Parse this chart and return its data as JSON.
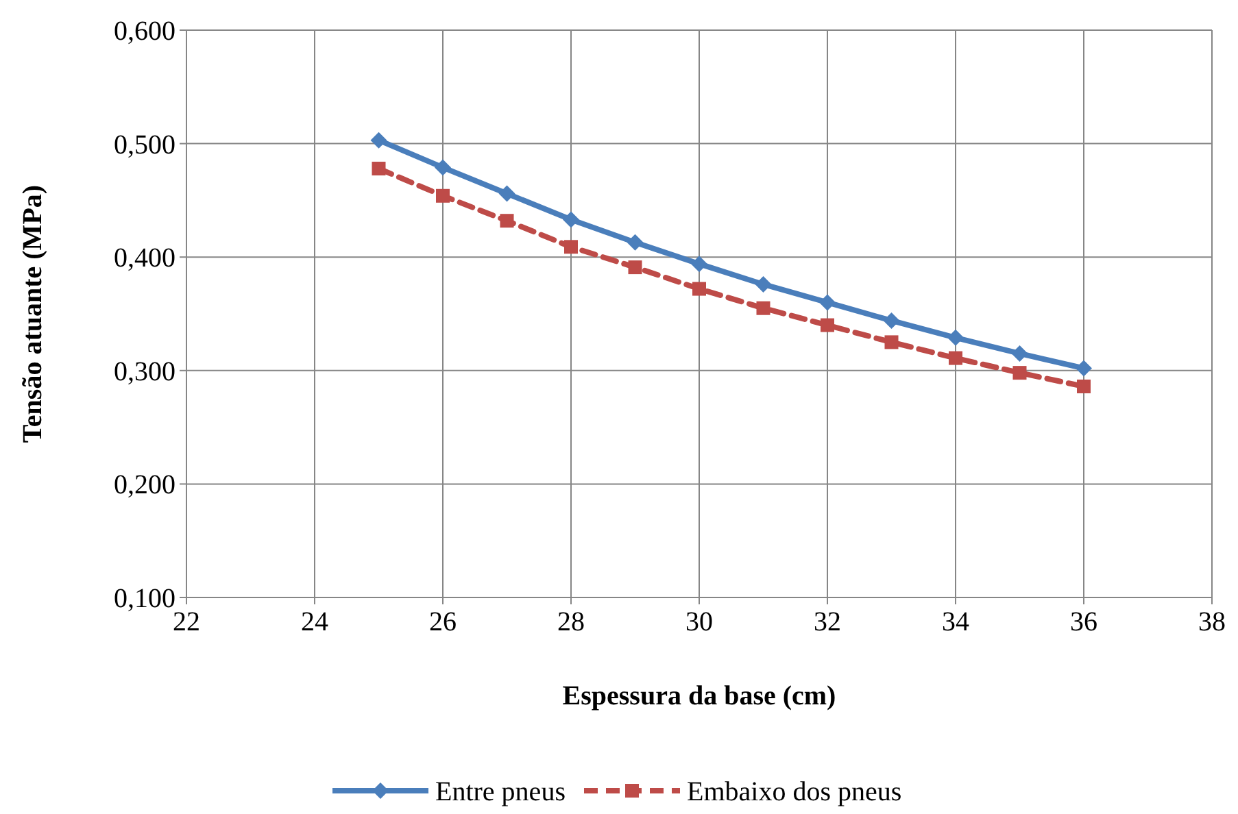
{
  "chart_data": {
    "type": "line",
    "xlabel": "Espessura da base (cm)",
    "ylabel": "Tensão atuante (MPa)",
    "x": [
      25,
      26,
      27,
      28,
      29,
      30,
      31,
      32,
      33,
      34,
      35,
      36
    ],
    "xlim": [
      22,
      38
    ],
    "xticks": [
      22,
      24,
      26,
      28,
      30,
      32,
      34,
      36,
      38
    ],
    "ylim": [
      0.1,
      0.6
    ],
    "yticks": [
      {
        "value": 0.1,
        "label": "0,100"
      },
      {
        "value": 0.2,
        "label": "0,200"
      },
      {
        "value": 0.3,
        "label": "0,300"
      },
      {
        "value": 0.4,
        "label": "0,400"
      },
      {
        "value": 0.5,
        "label": "0,500"
      },
      {
        "value": 0.6,
        "label": "0,600"
      }
    ],
    "grid": true,
    "legend": "bottom",
    "series": [
      {
        "name": "Entre pneus",
        "color": "#4a7ebb",
        "marker": "diamond",
        "line_style": "solid",
        "values": [
          0.503,
          0.479,
          0.456,
          0.433,
          0.413,
          0.394,
          0.376,
          0.36,
          0.344,
          0.329,
          0.315,
          0.302
        ]
      },
      {
        "name": "Embaixo dos pneus",
        "color": "#be4b48",
        "marker": "square",
        "line_style": "dashed",
        "values": [
          0.478,
          0.454,
          0.432,
          0.409,
          0.391,
          0.372,
          0.355,
          0.34,
          0.325,
          0.311,
          0.298,
          0.286
        ]
      }
    ]
  }
}
